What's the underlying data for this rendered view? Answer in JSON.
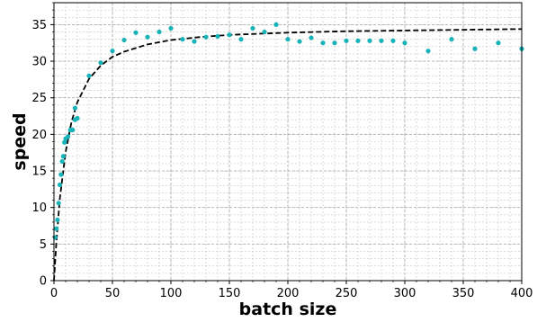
{
  "chart_data": {
    "type": "scatter",
    "xlabel": "batch size",
    "ylabel": "speed",
    "xlim": [
      0,
      400
    ],
    "ylim": [
      0,
      38
    ],
    "xticks": [
      0,
      50,
      100,
      150,
      200,
      250,
      300,
      350,
      400
    ],
    "yticks": [
      0,
      5,
      10,
      15,
      20,
      25,
      30,
      35
    ],
    "grid": true,
    "minor_grid": true,
    "legend": "none",
    "colors": {
      "points": "#17b3b8",
      "fit": "#000000",
      "grid": "#c8c8c8"
    },
    "series": [
      {
        "kind": "points",
        "x": [
          1,
          2,
          3,
          4,
          5,
          6,
          7,
          8,
          9,
          10,
          12,
          14,
          16,
          18,
          18,
          20,
          30,
          40,
          50,
          60,
          70,
          80,
          90,
          100,
          110,
          120,
          130,
          140,
          150,
          160,
          170,
          180,
          190,
          200,
          210,
          220,
          230,
          240,
          250,
          260,
          270,
          280,
          290,
          300,
          320,
          340,
          360,
          380,
          400
        ],
        "y": [
          5.9,
          7.1,
          8.3,
          10.6,
          13.1,
          14.5,
          16.3,
          17.0,
          18.9,
          19.4,
          19.7,
          20.6,
          20.6,
          23.6,
          22.0,
          22.2,
          28.0,
          29.8,
          31.4,
          32.9,
          33.9,
          33.3,
          34.0,
          34.5,
          33.0,
          32.7,
          33.3,
          33.4,
          33.6,
          33.0,
          34.5,
          34.0,
          35.0,
          33.0,
          32.7,
          33.2,
          32.5,
          32.5,
          32.8,
          32.8,
          32.8,
          32.8,
          32.8,
          32.5,
          31.4,
          33.0,
          31.7,
          32.5,
          31.7
        ]
      },
      {
        "kind": "fit",
        "style": "dashed",
        "x": [
          0,
          2,
          5,
          10,
          15,
          20,
          30,
          40,
          50,
          60,
          80,
          100,
          125,
          150,
          200,
          250,
          300,
          350,
          400
        ],
        "y": [
          0,
          5.1,
          11.2,
          17.6,
          21.7,
          24.4,
          27.6,
          29.4,
          30.6,
          31.3,
          32.3,
          32.9,
          33.3,
          33.6,
          33.9,
          34.1,
          34.2,
          34.3,
          34.4
        ]
      }
    ]
  }
}
